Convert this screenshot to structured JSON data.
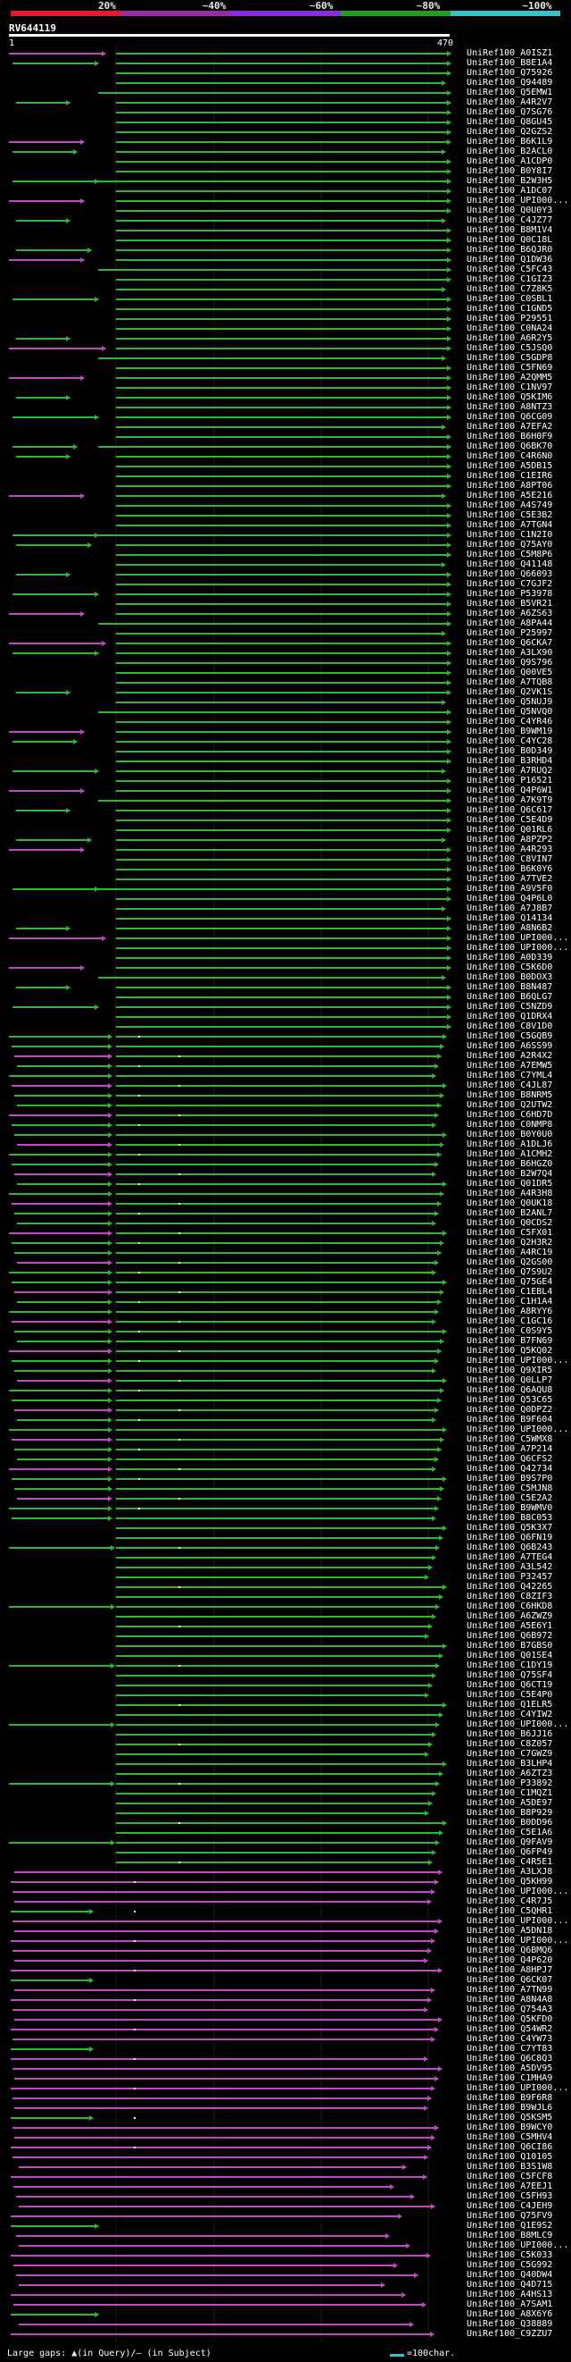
{
  "scale": {
    "labels": [
      "20%",
      "~40%",
      "~60%",
      "~80%",
      "~100%"
    ],
    "colors": [
      "#e8192c",
      "#9a2ba3",
      "#8a2be2",
      "#1fa11f",
      "#36c2c7"
    ]
  },
  "query": {
    "name": "RV644119",
    "start": "1",
    "end": "470"
  },
  "footer": {
    "text": "Large gaps: ▲(in Query)/– (in Subject)",
    "legend": "=100char."
  },
  "colors": {
    "green": "#2fb52f",
    "magenta": "#c247c2",
    "background": "#000000"
  },
  "hit_labels": [
    "UniRef100_A0ISZ1",
    "UniRef100_B8E1A4",
    "UniRef100_Q75926",
    "UniRef100_Q94489",
    "UniRef100_Q5EMW1",
    "UniRef100_A4R2V7",
    "UniRef100_Q7SG76",
    "UniRef100_Q8GU45",
    "UniRef100_Q2GZS2",
    "UniRef100_B6K1L9",
    "UniRef100_B2ACL0",
    "UniRef100_A1CDP0",
    "UniRef100_B0Y8I7",
    "UniRef100_B2W3H5",
    "UniRef100_A1DC07",
    "UniRef100_UPI000...",
    "UniRef100_Q0U0Y3",
    "UniRef100_C4JZ77",
    "UniRef100_B8M1V4",
    "UniRef100_Q0C18L",
    "UniRef100_B6QJR0",
    "UniRef100_Q1DW36",
    "UniRef100_C5FC43",
    "UniRef100_C1GIZ3",
    "UniRef100_C7Z8K5",
    "UniRef100_C0SBL1",
    "UniRef100_C1GND5",
    "UniRef100_P29551",
    "UniRef100_C0NA24",
    "UniRef100_A6R2Y5",
    "UniRef100_C5JSQ0",
    "UniRef100_C5GDP8",
    "UniRef100_C5FN69",
    "UniRef100_A2QMM5",
    "UniRef100_C1NV97",
    "UniRef100_Q5KIM6",
    "UniRef100_A8NTZ3",
    "UniRef100_Q6CG09",
    "UniRef100_A7EFA2",
    "UniRef100_B6H0F9",
    "UniRef100_Q6BK70",
    "UniRef100_C4R6N0",
    "UniRef100_A5DB15",
    "UniRef100_C1EIR6",
    "UniRef100_A8PT06",
    "UniRef100_A5E216",
    "UniRef100_A4S749",
    "UniRef100_C5E3B2",
    "UniRef100_A7TGN4",
    "UniRef100_C1N2I0",
    "UniRef100_Q75AY0",
    "UniRef100_C5M8P6",
    "UniRef100_Q41148",
    "UniRef100_Q66093",
    "UniRef100_C7GJF2",
    "UniRef100_P53978",
    "UniRef100_B5VR21",
    "UniRef100_A6ZS63",
    "UniRef100_A8PA44",
    "UniRef100_P25997",
    "UniRef100_Q6CKA7",
    "UniRef100_A3LX90",
    "UniRef100_Q9S796",
    "UniRef100_Q00VE5",
    "UniRef100_A7TQB8",
    "UniRef100_Q2VK1S",
    "UniRef100_Q5NUJ9",
    "UniRef100_Q5NVQ0",
    "UniRef100_C4YR46",
    "UniRef100_B9WM19",
    "UniRef100_C4YC28",
    "UniRef100_B0D349",
    "UniRef100_B3RHD4",
    "UniRef100_A7RUQ2",
    "UniRef100_P16521",
    "UniRef100_Q4P6W1",
    "UniRef100_A7K9T9",
    "UniRef100_Q6C617",
    "UniRef100_C5E4D9",
    "UniRef100_Q01RL6",
    "UniRef100_A8PZP2",
    "UniRef100_A4R293",
    "UniRef100_C8VIN7",
    "UniRef100_B6K0Y6",
    "UniRef100_A7TVE2",
    "UniRef100_A9V5F0",
    "UniRef100_Q4P6L0",
    "UniRef100_A7J8B7",
    "UniRef100_Q14134",
    "UniRef100_A8N6B2",
    "UniRef100_UPI000...",
    "UniRef100_UPI000...",
    "UniRef100_A0D339",
    "UniRef100_C5K6D0",
    "UniRef100_B0DOX3",
    "UniRef100_B8N487",
    "UniRef100_B6QLG7",
    "UniRef100_C5NZD9",
    "UniRef100_Q1DRX4",
    "UniRef100_C8V1D0",
    "UniRef100_C5GQB9",
    "UniRef100_A6SS99",
    "UniRef100_A2R4X2",
    "UniRef100_A7EMW5",
    "UniRef100_C7YML4",
    "UniRef100_C4JL87",
    "UniRef100_B8NRM5",
    "UniRef100_Q2UTW2",
    "UniRef100_C6HD7D",
    "UniRef100_C0NMP8",
    "UniRef100_B0Y0U0",
    "UniRef100_A1DLJ6",
    "UniRef100_A1CMH2",
    "UniRef100_B6HGZ0",
    "UniRef100_B2W7Q4",
    "UniRef100_Q01DR5",
    "UniRef100_A4R3H8",
    "UniRef100_Q0UK18",
    "UniRef100_B2ANL7",
    "UniRef100_Q0CDS2",
    "UniRef100_C5FX01",
    "UniRef100_Q2H3R2",
    "UniRef100_A4RC19",
    "UniRef100_Q2GS00",
    "UniRef100_Q7S9U2",
    "UniRef100_Q75GE4",
    "UniRef100_C1EBL4",
    "UniRef100_C1H1A4",
    "UniRef100_A8RYY6",
    "UniRef100_C1GC16",
    "UniRef100_C0S9Y5",
    "UniRef100_B7FN69",
    "UniRef100_Q5KQ02",
    "UniRef100_UPI000...",
    "UniRef100_Q9XIR5",
    "UniRef100_Q0LLP7",
    "UniRef100_Q6AQU8",
    "UniRef100_Q53C65",
    "UniRef100_Q0DPZ2",
    "UniRef100_B9F604",
    "UniRef100_UPI000...",
    "UniRef100_C5WMX8",
    "UniRef100_A7P214",
    "UniRef100_Q6CFS2",
    "UniRef100_Q42734",
    "UniRef100_B9S7P0",
    "UniRef100_C5MJN8",
    "UniRef100_C5E2A2",
    "UniRef100_B9WMV0",
    "UniRef100_B8C053",
    "UniRef100_Q5K3X7",
    "UniRef100_Q6FN19",
    "UniRef100_Q6B243",
    "UniRef100_A7TEG4",
    "UniRef100_A3L542",
    "UniRef100_P32457",
    "UniRef100_Q42265",
    "UniRef100_C8ZIF3",
    "UniRef100_C6HKD8",
    "UniRef100_A6ZWZ9",
    "UniRef100_A5E6Y1",
    "UniRef100_Q6B972",
    "UniRef100_B7GBS0",
    "UniRef100_Q01SE4",
    "UniRef100_C1DY19",
    "UniRef100_Q75SF4",
    "UniRef100_Q6CT19",
    "UniRef100_C5E4P0",
    "UniRef100_Q1ELR5",
    "UniRef100_C4YIW2",
    "UniRef100_UPI000...",
    "UniRef100_B6JJ16",
    "UniRef100_C8Z057",
    "UniRef100_C7GWZ9",
    "UniRef100_B3LHP4",
    "UniRef100_A6ZTZ3",
    "UniRef100_P33892",
    "UniRef100_C1MQZ1",
    "UniRef100_A5DE97",
    "UniRef100_B8P929",
    "UniRef100_B0DD96",
    "UniRef100_C5E1A6",
    "UniRef100_Q9FAV9",
    "UniRef100_Q6FP49",
    "UniRef100_C4R5E1",
    "UniRef100_A3LXJ8",
    "UniRef100_Q5KH99",
    "UniRef100_UPI000...",
    "UniRef100_C4R7J5",
    "UniRef100_C5QHR1",
    "UniRef100_UPI000...",
    "UniRef100_A5DN18",
    "UniRef100_UPI000...",
    "UniRef100_Q6BMQ6",
    "UniRef100_Q4P620",
    "UniRef100_A8HPJ7",
    "UniRef100_Q6CK07",
    "UniRef100_A7TN99",
    "UniRef100_A8N4A8",
    "UniRef100_Q754A3",
    "UniRef100_Q5KFD0",
    "UniRef100_Q54WR2",
    "UniRef100_C4YW73",
    "UniRef100_C7YT83",
    "UniRef100_Q6C8Q3",
    "UniRef100_A5DV95",
    "UniRef100_C1MHA9",
    "UniRef100_UPI000...",
    "UniRef100_B9F6R8",
    "UniRef100_B9WJL6",
    "UniRef100_Q5KSM5",
    "UniRef100_B9WCY0",
    "UniRef100_C5MHV4",
    "UniRef100_Q6CI86",
    "UniRef100_Q10105",
    "UniRef100_B3S1W8",
    "UniRef100_C5FCF8",
    "UniRef100_A7EEJ1",
    "UniRef100_C5FH93",
    "UniRef100_C4JEH9",
    "UniRef100_Q75FV9",
    "UniRef100_Q1E9S2",
    "UniRef100_B8MLC9",
    "UniRef100_UPI000...",
    "UniRef100_C5K033",
    "UniRef100_C5G992",
    "UniRef100_Q40DW4",
    "UniRef100_Q4D715",
    "UniRef100_A4HS13",
    "UniRef100_A7SAM1",
    "UniRef100_A8X6Y6",
    "UniRef100_Q38889",
    "UniRef100_C9ZZU7"
  ]
}
